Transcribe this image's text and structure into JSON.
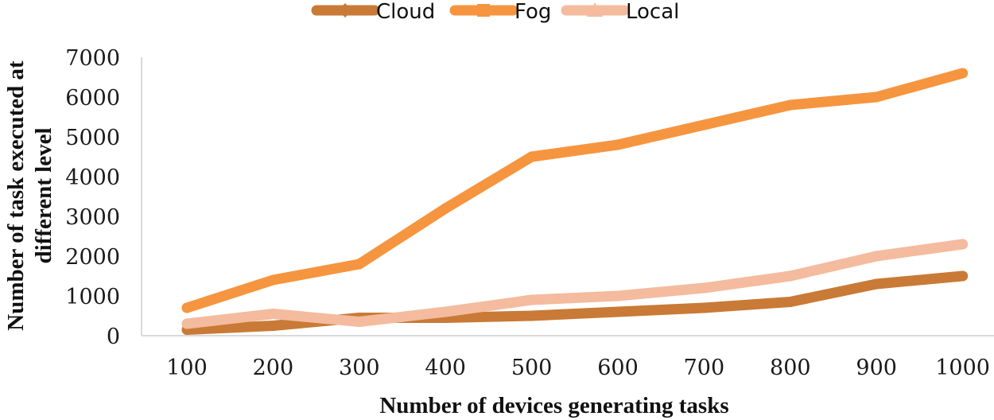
{
  "chart_data": {
    "type": "line",
    "title": "",
    "xlabel": "Number of devices generating tasks",
    "ylabel_line1": "Number of task executed at",
    "ylabel_line2": "different level",
    "categories": [
      "100",
      "200",
      "300",
      "400",
      "500",
      "600",
      "700",
      "800",
      "900",
      "1000"
    ],
    "ylim": [
      0,
      7000
    ],
    "yticks": [
      "0",
      "1000",
      "2000",
      "3000",
      "4000",
      "5000",
      "6000",
      "7000"
    ],
    "grid": false,
    "legend_position": "top-center",
    "series": [
      {
        "name": "Cloud",
        "color": "#c97a36",
        "marker": "diamond",
        "values": [
          150,
          250,
          450,
          450,
          500,
          600,
          700,
          850,
          1300,
          1500
        ]
      },
      {
        "name": "Fog",
        "color": "#f6953f",
        "marker": "square",
        "values": [
          700,
          1400,
          1800,
          3200,
          4500,
          4800,
          5300,
          5800,
          6000,
          6600
        ]
      },
      {
        "name": "Local",
        "color": "#f4bb9e",
        "marker": "triangle",
        "values": [
          300,
          550,
          350,
          600,
          900,
          1000,
          1200,
          1500,
          2000,
          2300
        ]
      }
    ]
  }
}
